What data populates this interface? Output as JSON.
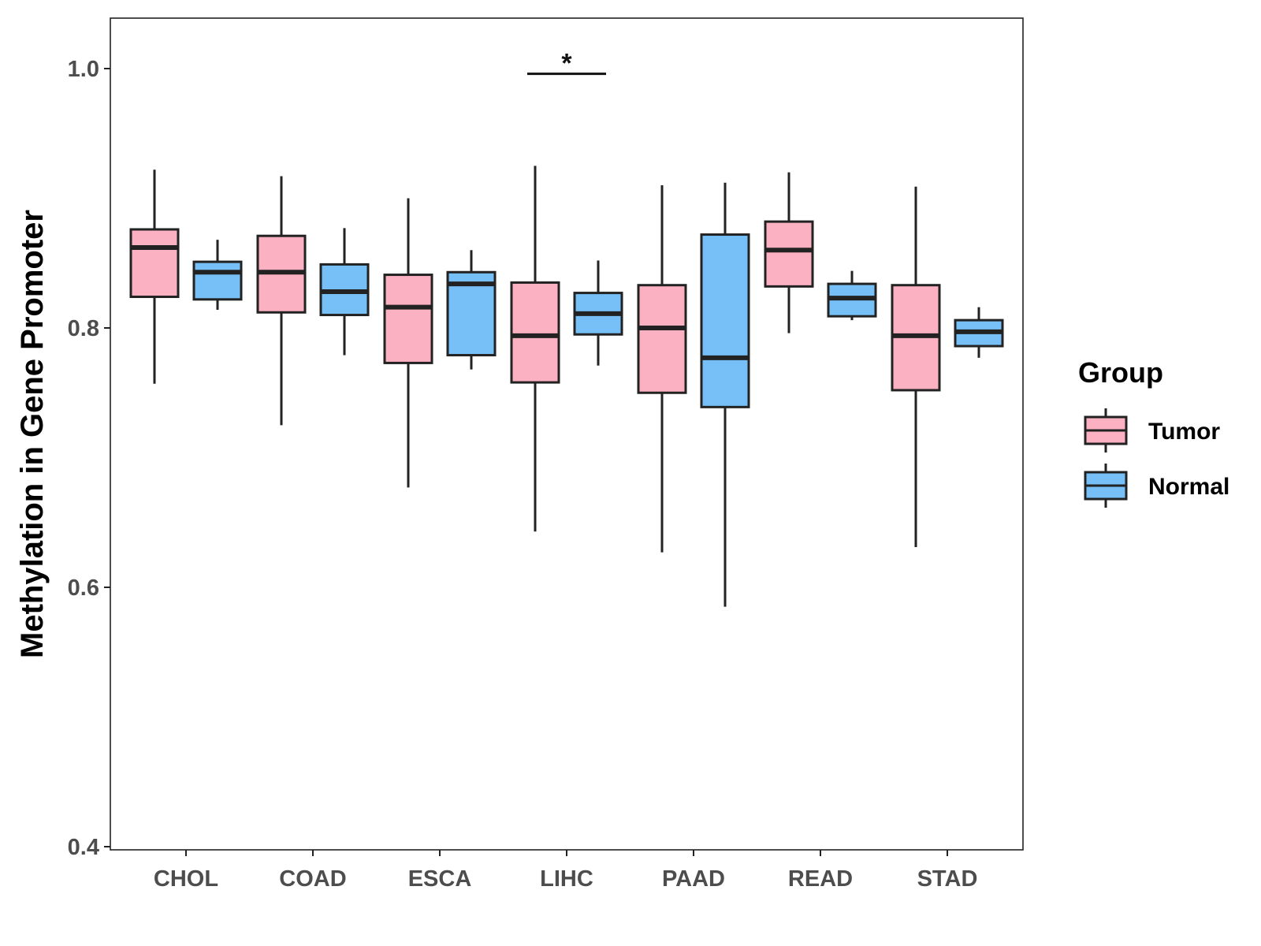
{
  "chart_data": {
    "type": "boxplot",
    "title": "",
    "xlabel": "",
    "ylabel": "Methylation in Gene Promoter",
    "ylim": [
      0.4,
      1.04
    ],
    "yticks": [
      0.4,
      0.6,
      0.8,
      1.0
    ],
    "ytick_labels": [
      "0.4",
      "0.6",
      "0.8",
      "1.0"
    ],
    "categories": [
      "CHOL",
      "COAD",
      "ESCA",
      "LIHC",
      "PAAD",
      "READ",
      "STAD"
    ],
    "legend": {
      "title": "Group",
      "position": "right",
      "entries": [
        {
          "label": "Tumor",
          "color": "#fbb1c1"
        },
        {
          "label": "Normal",
          "color": "#76c0f7"
        }
      ]
    },
    "series": [
      {
        "name": "Tumor",
        "color": "#fbb1c1",
        "boxes": [
          {
            "category": "CHOL",
            "min": 0.757,
            "q1": 0.824,
            "median": 0.862,
            "q3": 0.876,
            "max": 0.922
          },
          {
            "category": "COAD",
            "min": 0.725,
            "q1": 0.812,
            "median": 0.843,
            "q3": 0.871,
            "max": 0.917
          },
          {
            "category": "ESCA",
            "min": 0.677,
            "q1": 0.773,
            "median": 0.816,
            "q3": 0.841,
            "max": 0.9
          },
          {
            "category": "LIHC",
            "min": 0.643,
            "q1": 0.758,
            "median": 0.794,
            "q3": 0.835,
            "max": 0.925
          },
          {
            "category": "PAAD",
            "min": 0.627,
            "q1": 0.75,
            "median": 0.8,
            "q3": 0.833,
            "max": 0.91
          },
          {
            "category": "READ",
            "min": 0.796,
            "q1": 0.832,
            "median": 0.86,
            "q3": 0.882,
            "max": 0.92
          },
          {
            "category": "STAD",
            "min": 0.631,
            "q1": 0.752,
            "median": 0.794,
            "q3": 0.833,
            "max": 0.909
          }
        ]
      },
      {
        "name": "Normal",
        "color": "#76c0f7",
        "boxes": [
          {
            "category": "CHOL",
            "min": 0.814,
            "q1": 0.822,
            "median": 0.843,
            "q3": 0.851,
            "max": 0.868
          },
          {
            "category": "COAD",
            "min": 0.779,
            "q1": 0.81,
            "median": 0.828,
            "q3": 0.849,
            "max": 0.877
          },
          {
            "category": "ESCA",
            "min": 0.768,
            "q1": 0.779,
            "median": 0.834,
            "q3": 0.843,
            "max": 0.86
          },
          {
            "category": "LIHC",
            "min": 0.771,
            "q1": 0.795,
            "median": 0.811,
            "q3": 0.827,
            "max": 0.852
          },
          {
            "category": "PAAD",
            "min": 0.585,
            "q1": 0.739,
            "median": 0.777,
            "q3": 0.872,
            "max": 0.912
          },
          {
            "category": "READ",
            "min": 0.806,
            "q1": 0.809,
            "median": 0.823,
            "q3": 0.834,
            "max": 0.844
          },
          {
            "category": "STAD",
            "min": 0.777,
            "q1": 0.786,
            "median": 0.797,
            "q3": 0.806,
            "max": 0.816
          }
        ]
      }
    ],
    "annotations": [
      {
        "category": "LIHC",
        "text": "*",
        "y": 0.996
      }
    ]
  }
}
